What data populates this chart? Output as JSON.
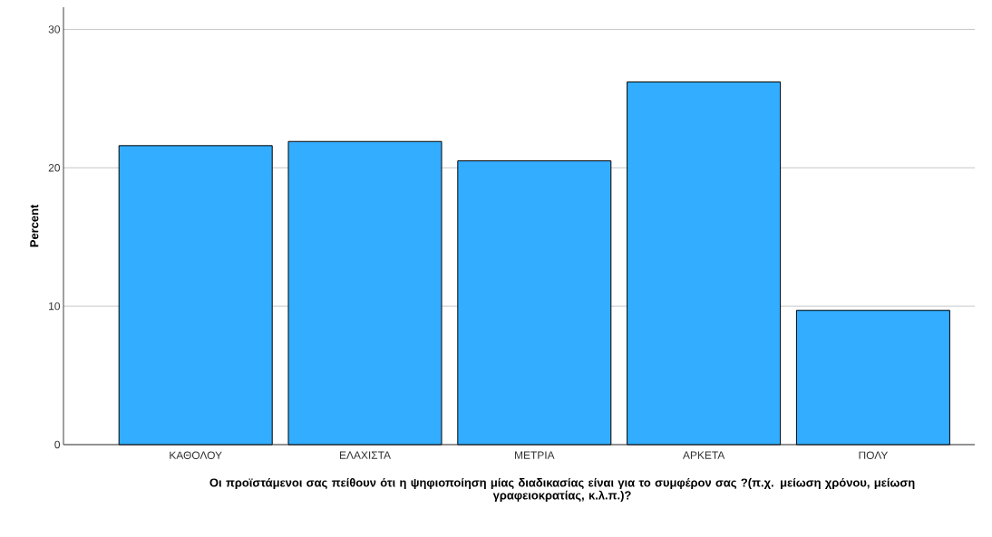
{
  "chart_data": {
    "type": "bar",
    "xlabel": "Οι προϊστάμενοι σας πείθουν ότι η ψηφιοποίηση μίας διαδικασίας είναι για το συμφέρον σας ?(π.χ. μείωση χρόνου, μείωση γραφειοκρατίας, κ.λ.π.)?",
    "ylabel": "Percent",
    "categories": [
      "ΚΑΘΟΛΟΥ",
      "ΕΛΑΧΙΣΤΑ",
      "ΜΕΤΡΙΑ",
      "ΑΡΚΕΤΑ",
      "ΠΟΛΥ"
    ],
    "values": [
      21.6,
      21.9,
      20.5,
      26.2,
      9.7
    ],
    "color": "#33adff",
    "ylim": [
      0,
      31.6
    ],
    "yticks": [
      0,
      10,
      20,
      30
    ],
    "grid": "y"
  }
}
